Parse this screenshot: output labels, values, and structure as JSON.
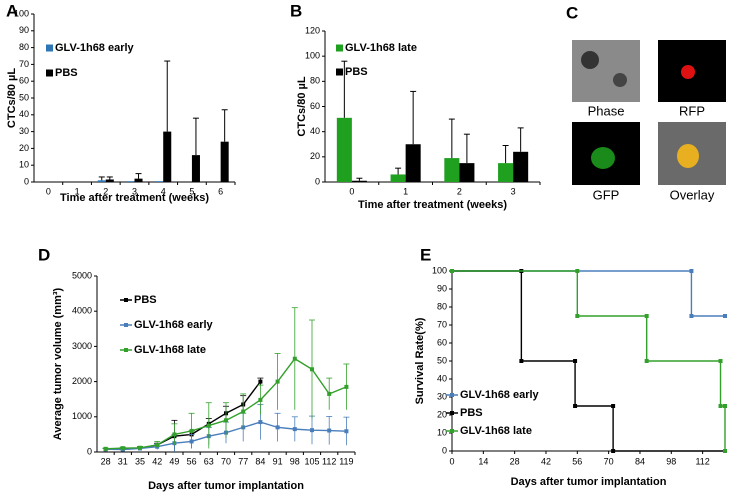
{
  "chart_data": [
    {
      "type": "bar",
      "label": "A",
      "x_label": "Time after treatment (weeks)",
      "y_label": "CTCs/80 µL",
      "categories": [
        0,
        1,
        2,
        3,
        4,
        5,
        6
      ],
      "ylim": [
        0,
        100
      ],
      "yticks": [
        0,
        10,
        20,
        30,
        40,
        50,
        60,
        70,
        80,
        90,
        100
      ],
      "series": [
        {
          "name": "GLV-1h68 early",
          "color": "#2e75b6",
          "values": [
            0,
            0,
            1,
            0.5,
            0.5,
            null,
            null
          ],
          "errors": [
            null,
            null,
            2,
            null,
            null,
            null,
            null
          ]
        },
        {
          "name": "PBS",
          "color": "#000000",
          "values": [
            0,
            0,
            1.5,
            2,
            30,
            16,
            24
          ],
          "errors": [
            null,
            null,
            1.5,
            3,
            42,
            22,
            19
          ]
        }
      ]
    },
    {
      "type": "bar",
      "label": "B",
      "x_label": "Time after treatment (weeks)",
      "y_label": "CTCs/80 µL",
      "categories": [
        0,
        1,
        2,
        3
      ],
      "ylim": [
        0,
        120
      ],
      "yticks": [
        0,
        20,
        40,
        60,
        80,
        100,
        120
      ],
      "series": [
        {
          "name": "GLV-1h68 late",
          "color": "#1fa01f",
          "values": [
            51,
            6,
            19,
            15
          ],
          "errors": [
            45,
            5,
            31,
            14
          ]
        },
        {
          "name": "PBS",
          "color": "#000000",
          "values": [
            1,
            30,
            15,
            24
          ],
          "errors": [
            2,
            42,
            23,
            19
          ]
        }
      ]
    },
    {
      "type": "line",
      "label": "D",
      "x_label": "Days after tumor implantation",
      "y_label": "Average tumor volume (mm³)",
      "categories": [
        28,
        31,
        35,
        42,
        49,
        56,
        63,
        70,
        77,
        84,
        91,
        98,
        105,
        112,
        119
      ],
      "ylim": [
        0,
        5000
      ],
      "yticks": [
        0,
        1000,
        2000,
        3000,
        4000,
        5000
      ],
      "series": [
        {
          "name": "PBS",
          "color": "#000000",
          "values": [
            80,
            90,
            110,
            200,
            450,
            500,
            800,
            1100,
            1350,
            2000,
            null,
            null,
            null,
            null,
            null
          ],
          "errors": [
            20,
            20,
            30,
            50,
            450,
            100,
            150,
            200,
            250,
            100,
            null,
            null,
            null,
            null,
            null
          ]
        },
        {
          "name": "GLV-1h68 early",
          "color": "#4a7ebb",
          "values": [
            80,
            70,
            100,
            150,
            250,
            300,
            450,
            550,
            700,
            850,
            700,
            650,
            620,
            610,
            590
          ],
          "errors": [
            20,
            20,
            40,
            80,
            250,
            200,
            250,
            300,
            400,
            500,
            400,
            350,
            400,
            400,
            400
          ]
        },
        {
          "name": "GLV-1h68 late",
          "color": "#33a02c",
          "values": [
            90,
            110,
            120,
            200,
            500,
            600,
            750,
            900,
            1150,
            1480,
            2000,
            2650,
            2350,
            1650,
            1850
          ],
          "errors": [
            20,
            30,
            40,
            100,
            300,
            500,
            650,
            500,
            500,
            420,
            800,
            1450,
            1400,
            450,
            650
          ]
        }
      ]
    },
    {
      "type": "line",
      "label": "E",
      "x_label": "Days after tumor implantation",
      "y_label": "Survival Rate(%)",
      "xlim": [
        0,
        122
      ],
      "xticks": [
        0,
        14,
        28,
        42,
        56,
        70,
        84,
        98,
        112
      ],
      "ylim": [
        0,
        100
      ],
      "yticks": [
        0,
        10,
        20,
        30,
        40,
        50,
        60,
        70,
        80,
        90,
        100
      ],
      "series": [
        {
          "name": "GLV-1h68 early",
          "color": "#4a7ebb",
          "x": [
            0,
            107,
            107,
            122
          ],
          "values": [
            100,
            100,
            75,
            75
          ]
        },
        {
          "name": "PBS",
          "color": "#000000",
          "x": [
            0,
            31,
            31,
            55,
            55,
            72,
            72,
            122
          ],
          "values": [
            100,
            100,
            50,
            50,
            25,
            25,
            0,
            0
          ]
        },
        {
          "name": "GLV-1h68 late",
          "color": "#33a02c",
          "x": [
            0,
            56,
            56,
            87,
            87,
            120,
            120,
            122,
            122
          ],
          "values": [
            100,
            100,
            75,
            75,
            50,
            50,
            25,
            25,
            0
          ]
        }
      ]
    }
  ],
  "panel_c": {
    "label": "C",
    "captions": [
      "Phase",
      "RFP",
      "GFP",
      "Overlay"
    ]
  }
}
